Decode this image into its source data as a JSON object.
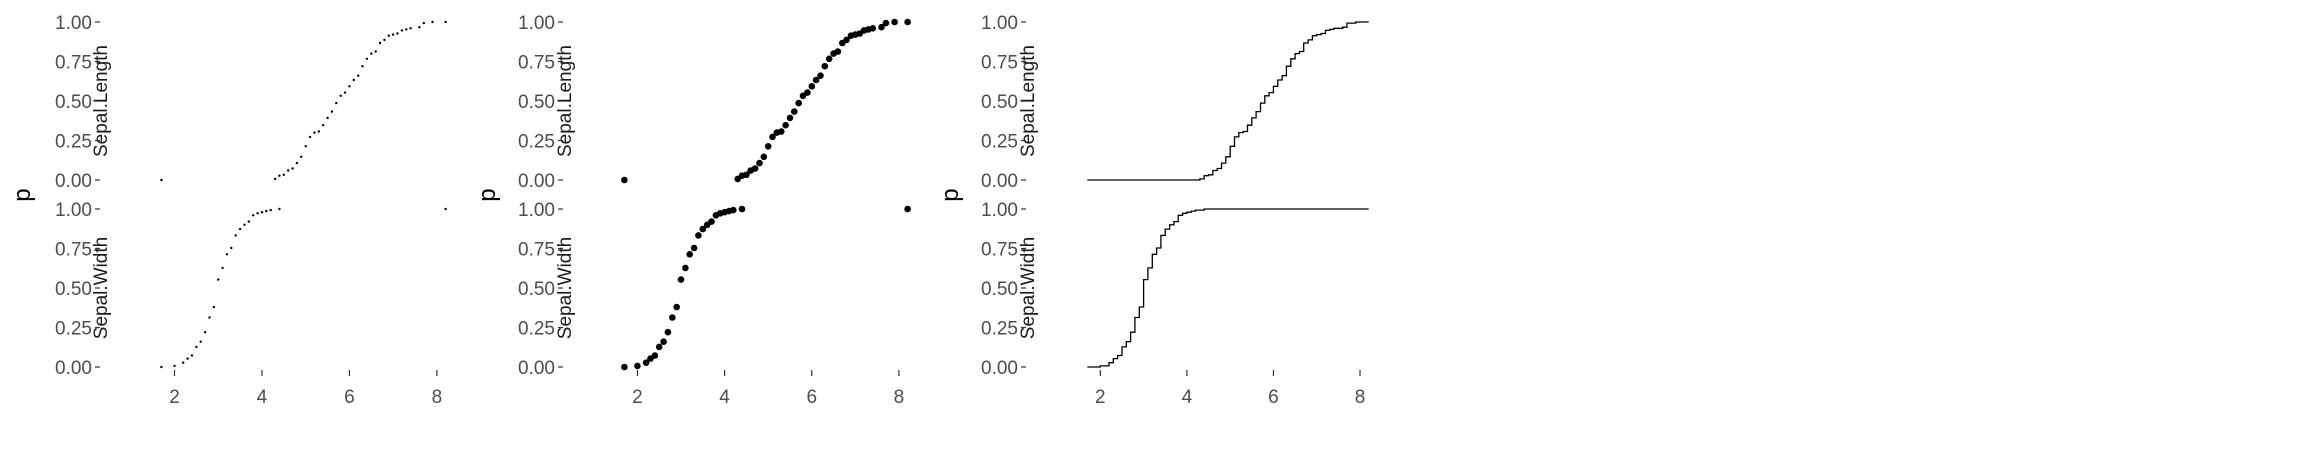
{
  "colors": {
    "mark": "#000000",
    "tick_text": "#4d4d4d",
    "tick_line": "#333333",
    "background": "#ffffff"
  },
  "chart_data": [
    {
      "type": "scatter",
      "variant": "ecdf-points-small",
      "ylabel": "p",
      "ylim": [
        0,
        1
      ],
      "xlim": [
        1.6,
        8.3
      ],
      "x_ticks": [
        2,
        4,
        6,
        8
      ],
      "y_ticks": [
        "0.00",
        "0.25",
        "0.50",
        "0.75",
        "1.00"
      ],
      "grid": false,
      "facets": [
        {
          "name": "Sepal.Length",
          "points": [
            [
              1.7,
              0.0
            ],
            [
              4.3,
              0.007
            ],
            [
              4.4,
              0.027
            ],
            [
              4.5,
              0.033
            ],
            [
              4.6,
              0.06
            ],
            [
              4.7,
              0.073
            ],
            [
              4.8,
              0.107
            ],
            [
              4.9,
              0.147
            ],
            [
              5.0,
              0.213
            ],
            [
              5.1,
              0.273
            ],
            [
              5.2,
              0.3
            ],
            [
              5.3,
              0.307
            ],
            [
              5.4,
              0.347
            ],
            [
              5.5,
              0.393
            ],
            [
              5.6,
              0.433
            ],
            [
              5.7,
              0.487
            ],
            [
              5.8,
              0.533
            ],
            [
              5.9,
              0.553
            ],
            [
              6.0,
              0.593
            ],
            [
              6.1,
              0.633
            ],
            [
              6.2,
              0.66
            ],
            [
              6.3,
              0.72
            ],
            [
              6.4,
              0.767
            ],
            [
              6.5,
              0.8
            ],
            [
              6.6,
              0.813
            ],
            [
              6.7,
              0.867
            ],
            [
              6.8,
              0.887
            ],
            [
              6.9,
              0.913
            ],
            [
              7.0,
              0.92
            ],
            [
              7.1,
              0.927
            ],
            [
              7.2,
              0.947
            ],
            [
              7.3,
              0.953
            ],
            [
              7.4,
              0.96
            ],
            [
              7.6,
              0.967
            ],
            [
              7.7,
              0.993
            ],
            [
              7.9,
              1.0
            ],
            [
              8.2,
              1.0
            ]
          ]
        },
        {
          "name": "Sepal.Width",
          "points": [
            [
              1.7,
              0.0
            ],
            [
              2.0,
              0.007
            ],
            [
              2.2,
              0.027
            ],
            [
              2.3,
              0.053
            ],
            [
              2.4,
              0.073
            ],
            [
              2.5,
              0.127
            ],
            [
              2.6,
              0.16
            ],
            [
              2.7,
              0.22
            ],
            [
              2.8,
              0.313
            ],
            [
              2.9,
              0.38
            ],
            [
              3.0,
              0.553
            ],
            [
              3.1,
              0.627
            ],
            [
              3.2,
              0.713
            ],
            [
              3.3,
              0.753
            ],
            [
              3.4,
              0.833
            ],
            [
              3.5,
              0.873
            ],
            [
              3.6,
              0.9
            ],
            [
              3.7,
              0.92
            ],
            [
              3.8,
              0.96
            ],
            [
              3.9,
              0.973
            ],
            [
              4.0,
              0.98
            ],
            [
              4.1,
              0.987
            ],
            [
              4.2,
              0.993
            ],
            [
              4.4,
              1.0
            ],
            [
              8.2,
              1.0
            ]
          ]
        }
      ]
    },
    {
      "type": "scatter",
      "variant": "ecdf-points-large",
      "ylabel": "p",
      "ylim": [
        0,
        1
      ],
      "xlim": [
        1.6,
        8.3
      ],
      "x_ticks": [
        2,
        4,
        6,
        8
      ],
      "y_ticks": [
        "0.00",
        "0.25",
        "0.50",
        "0.75",
        "1.00"
      ],
      "grid": false,
      "facets": [
        {
          "name": "Sepal.Length",
          "points": [
            [
              1.7,
              0.0
            ],
            [
              4.3,
              0.007
            ],
            [
              4.4,
              0.027
            ],
            [
              4.5,
              0.033
            ],
            [
              4.6,
              0.06
            ],
            [
              4.7,
              0.073
            ],
            [
              4.8,
              0.107
            ],
            [
              4.9,
              0.147
            ],
            [
              5.0,
              0.213
            ],
            [
              5.1,
              0.273
            ],
            [
              5.2,
              0.3
            ],
            [
              5.3,
              0.307
            ],
            [
              5.4,
              0.347
            ],
            [
              5.5,
              0.393
            ],
            [
              5.6,
              0.433
            ],
            [
              5.7,
              0.487
            ],
            [
              5.8,
              0.533
            ],
            [
              5.9,
              0.553
            ],
            [
              6.0,
              0.593
            ],
            [
              6.1,
              0.633
            ],
            [
              6.2,
              0.66
            ],
            [
              6.3,
              0.72
            ],
            [
              6.4,
              0.767
            ],
            [
              6.5,
              0.8
            ],
            [
              6.6,
              0.813
            ],
            [
              6.7,
              0.867
            ],
            [
              6.8,
              0.887
            ],
            [
              6.9,
              0.913
            ],
            [
              7.0,
              0.92
            ],
            [
              7.1,
              0.927
            ],
            [
              7.2,
              0.947
            ],
            [
              7.3,
              0.953
            ],
            [
              7.4,
              0.96
            ],
            [
              7.6,
              0.967
            ],
            [
              7.7,
              0.993
            ],
            [
              7.9,
              1.0
            ],
            [
              8.2,
              1.0
            ]
          ]
        },
        {
          "name": "Sepal.Width",
          "points": [
            [
              1.7,
              0.0
            ],
            [
              2.0,
              0.007
            ],
            [
              2.2,
              0.027
            ],
            [
              2.3,
              0.053
            ],
            [
              2.4,
              0.073
            ],
            [
              2.5,
              0.127
            ],
            [
              2.6,
              0.16
            ],
            [
              2.7,
              0.22
            ],
            [
              2.8,
              0.313
            ],
            [
              2.9,
              0.38
            ],
            [
              3.0,
              0.553
            ],
            [
              3.1,
              0.627
            ],
            [
              3.2,
              0.713
            ],
            [
              3.3,
              0.753
            ],
            [
              3.4,
              0.833
            ],
            [
              3.5,
              0.873
            ],
            [
              3.6,
              0.9
            ],
            [
              3.7,
              0.92
            ],
            [
              3.8,
              0.96
            ],
            [
              3.9,
              0.973
            ],
            [
              4.0,
              0.98
            ],
            [
              4.1,
              0.987
            ],
            [
              4.2,
              0.993
            ],
            [
              4.4,
              1.0
            ],
            [
              8.2,
              1.0
            ]
          ]
        }
      ]
    },
    {
      "type": "line",
      "variant": "ecdf-step",
      "ylabel": "p",
      "ylim": [
        0,
        1
      ],
      "xlim": [
        1.6,
        8.3
      ],
      "x_ticks": [
        2,
        4,
        6,
        8
      ],
      "y_ticks": [
        "0.00",
        "0.25",
        "0.50",
        "0.75",
        "1.00"
      ],
      "grid": false,
      "facets": [
        {
          "name": "Sepal.Length",
          "points": [
            [
              1.7,
              0.0
            ],
            [
              4.3,
              0.007
            ],
            [
              4.4,
              0.027
            ],
            [
              4.5,
              0.033
            ],
            [
              4.6,
              0.06
            ],
            [
              4.7,
              0.073
            ],
            [
              4.8,
              0.107
            ],
            [
              4.9,
              0.147
            ],
            [
              5.0,
              0.213
            ],
            [
              5.1,
              0.273
            ],
            [
              5.2,
              0.3
            ],
            [
              5.3,
              0.307
            ],
            [
              5.4,
              0.347
            ],
            [
              5.5,
              0.393
            ],
            [
              5.6,
              0.433
            ],
            [
              5.7,
              0.487
            ],
            [
              5.8,
              0.533
            ],
            [
              5.9,
              0.553
            ],
            [
              6.0,
              0.593
            ],
            [
              6.1,
              0.633
            ],
            [
              6.2,
              0.66
            ],
            [
              6.3,
              0.72
            ],
            [
              6.4,
              0.767
            ],
            [
              6.5,
              0.8
            ],
            [
              6.6,
              0.813
            ],
            [
              6.7,
              0.867
            ],
            [
              6.8,
              0.887
            ],
            [
              6.9,
              0.913
            ],
            [
              7.0,
              0.92
            ],
            [
              7.1,
              0.927
            ],
            [
              7.2,
              0.947
            ],
            [
              7.3,
              0.953
            ],
            [
              7.4,
              0.96
            ],
            [
              7.6,
              0.967
            ],
            [
              7.7,
              0.993
            ],
            [
              7.9,
              1.0
            ],
            [
              8.2,
              1.0
            ]
          ]
        },
        {
          "name": "Sepal.Width",
          "points": [
            [
              1.7,
              0.0
            ],
            [
              2.0,
              0.007
            ],
            [
              2.2,
              0.027
            ],
            [
              2.3,
              0.053
            ],
            [
              2.4,
              0.073
            ],
            [
              2.5,
              0.127
            ],
            [
              2.6,
              0.16
            ],
            [
              2.7,
              0.22
            ],
            [
              2.8,
              0.313
            ],
            [
              2.9,
              0.38
            ],
            [
              3.0,
              0.553
            ],
            [
              3.1,
              0.627
            ],
            [
              3.2,
              0.713
            ],
            [
              3.3,
              0.753
            ],
            [
              3.4,
              0.833
            ],
            [
              3.5,
              0.873
            ],
            [
              3.6,
              0.9
            ],
            [
              3.7,
              0.92
            ],
            [
              3.8,
              0.96
            ],
            [
              3.9,
              0.973
            ],
            [
              4.0,
              0.98
            ],
            [
              4.1,
              0.987
            ],
            [
              4.2,
              0.993
            ],
            [
              4.4,
              1.0
            ],
            [
              8.2,
              1.0
            ]
          ]
        }
      ]
    }
  ]
}
